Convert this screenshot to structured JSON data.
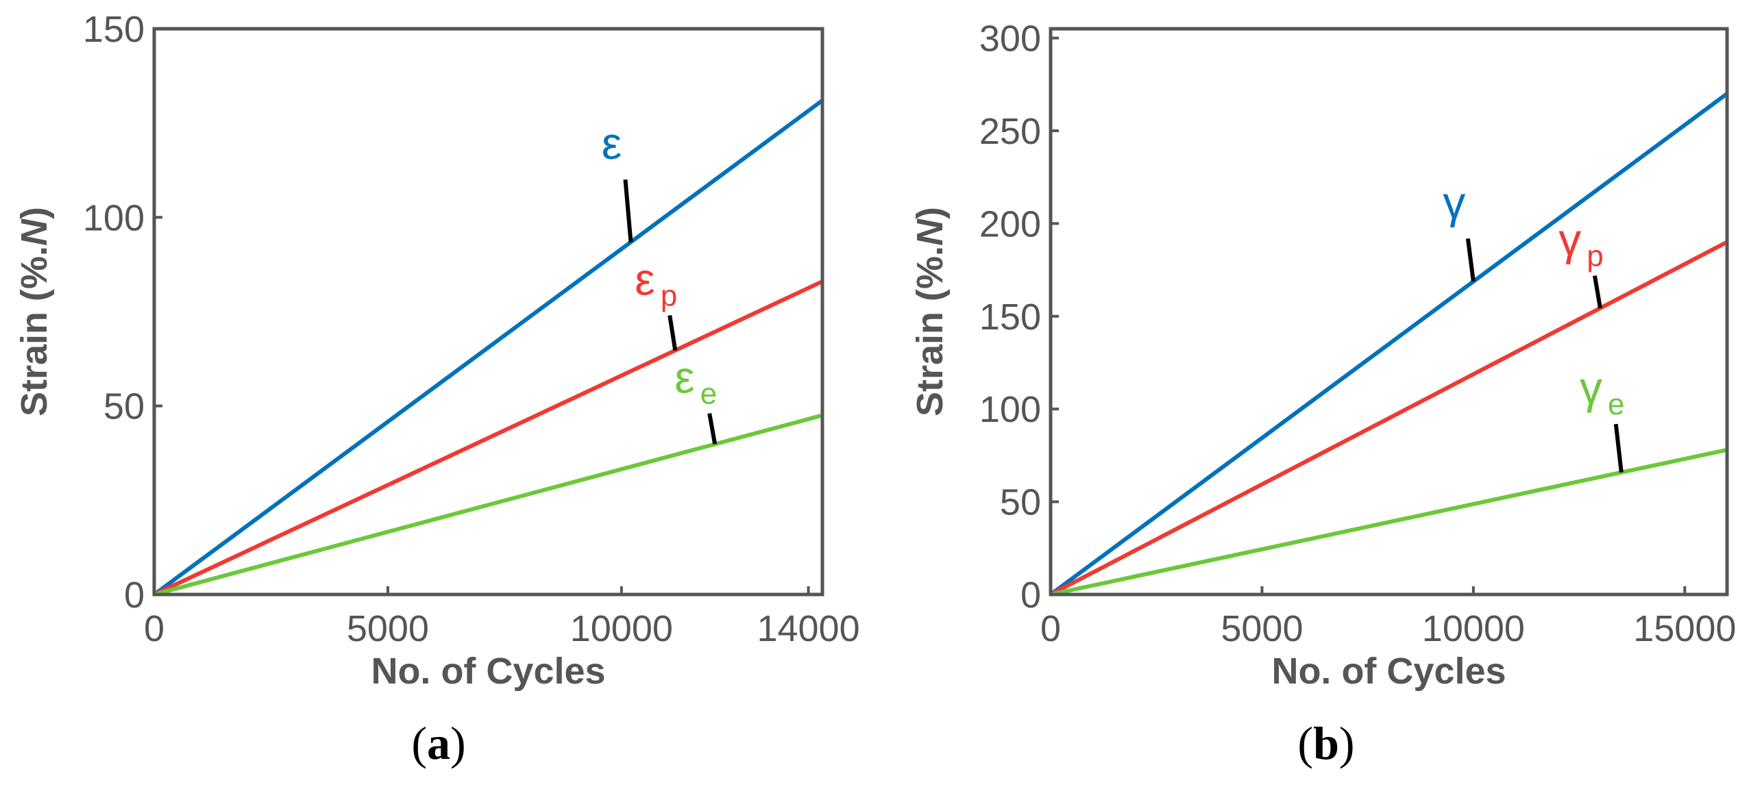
{
  "chart_data": [
    {
      "type": "line",
      "panel_label": "a",
      "xlabel": "No. of Cycles",
      "ylabel_main": "Strain (%.",
      "ylabel_italic": "N",
      "ylabel_close": ")",
      "xlim": [
        0,
        14300
      ],
      "ylim": [
        0,
        150
      ],
      "xticks": [
        0,
        5000,
        10000,
        14000
      ],
      "xtick_labels": [
        "0",
        "5000",
        "10000",
        "14000"
      ],
      "yticks": [
        0,
        50,
        100,
        150
      ],
      "ytick_labels": [
        "0",
        "50",
        "100",
        "150"
      ],
      "series": [
        {
          "name": "ε",
          "symbol": "ε",
          "sub": "",
          "color": "#0072BD",
          "x": [
            0,
            14300
          ],
          "y": [
            0,
            131
          ],
          "anno_x": 10200,
          "anno_label_y": 114
        },
        {
          "name": "ε_p",
          "symbol": "ε",
          "sub": "p",
          "color": "#F03A32",
          "x": [
            0,
            14300
          ],
          "y": [
            0,
            83
          ],
          "anno_x": 11150,
          "anno_label_y": 78
        },
        {
          "name": "ε_e",
          "symbol": "ε",
          "sub": "e",
          "color": "#6CC83A",
          "x": [
            0,
            14300
          ],
          "y": [
            0,
            47.5
          ],
          "anno_x": 12000,
          "anno_label_y": 52
        }
      ]
    },
    {
      "type": "line",
      "panel_label": "b",
      "xlabel": "No. of Cycles",
      "ylabel_main": "Strain (%.",
      "ylabel_italic": "N",
      "ylabel_close": ")",
      "xlim": [
        0,
        16000
      ],
      "ylim": [
        0,
        305
      ],
      "xticks": [
        0,
        5000,
        10000,
        15000
      ],
      "xtick_labels": [
        "0",
        "5000",
        "10000",
        "15000"
      ],
      "yticks": [
        0,
        50,
        100,
        150,
        200,
        250,
        300
      ],
      "ytick_labels": [
        "0",
        "50",
        "100",
        "150",
        "200",
        "250",
        "300"
      ],
      "series": [
        {
          "name": "γ",
          "symbol": "γ",
          "sub": "",
          "color": "#0072BD",
          "x": [
            0,
            16000
          ],
          "y": [
            0,
            270
          ],
          "anno_x": 10000,
          "anno_label_y": 200
        },
        {
          "name": "γ_p",
          "symbol": "γ",
          "sub": "p",
          "color": "#F03A32",
          "x": [
            0,
            16000
          ],
          "y": [
            0,
            190
          ],
          "anno_x": 13000,
          "anno_label_y": 180
        },
        {
          "name": "γ_e",
          "symbol": "γ",
          "sub": "e",
          "color": "#6CC83A",
          "x": [
            0,
            16000
          ],
          "y": [
            0,
            78
          ],
          "anno_x": 13500,
          "anno_label_y": 100
        }
      ]
    }
  ]
}
